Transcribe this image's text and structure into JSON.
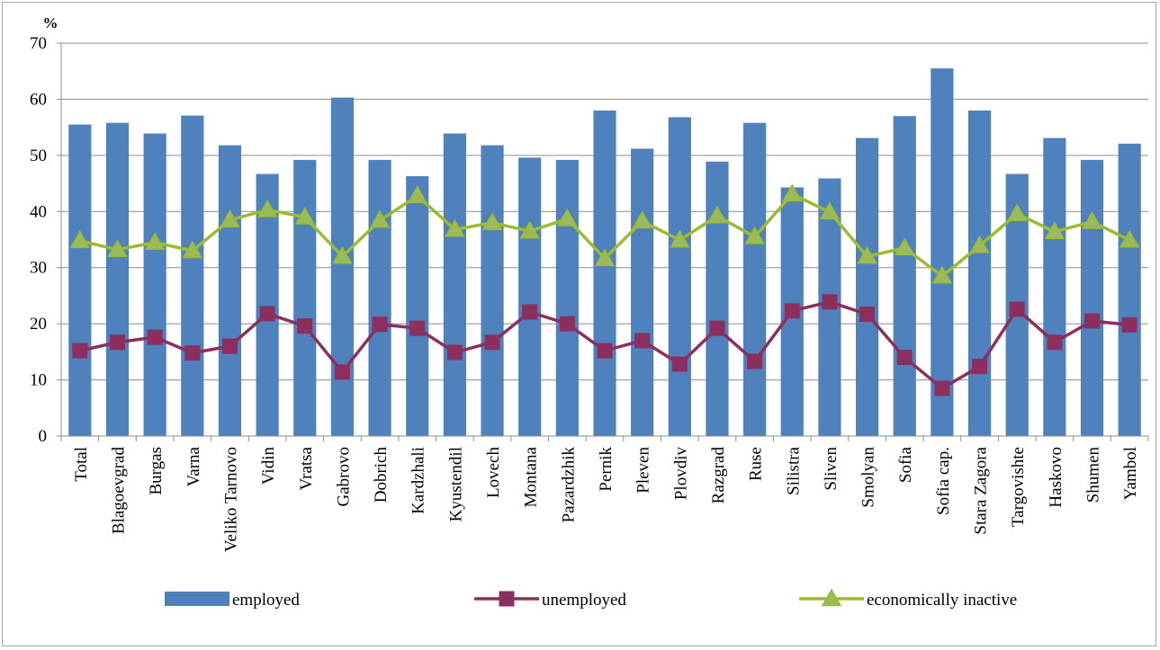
{
  "chart_data": {
    "type": "bar",
    "ylabel": "%",
    "ylim": [
      0,
      70
    ],
    "yticks": [
      0,
      10,
      20,
      30,
      40,
      50,
      60,
      70
    ],
    "grid": true,
    "legend_position": "bottom",
    "categories": [
      "Total",
      "Blagoevgrad",
      "Burgas",
      "Varna",
      "Veliko Tarnovo",
      "Vidin",
      "Vratsa",
      "Gabrovo",
      "Dobrich",
      "Kardzhali",
      "Kyustendil",
      "Lovech",
      "Montana",
      "Pazardzhik",
      "Pernik",
      "Pleven",
      "Plovdiv",
      "Razgrad",
      "Ruse",
      "Silistra",
      "Sliven",
      "Smolyan",
      "Sofia",
      "Sofia cap.",
      "Stara Zagora",
      "Targovishte",
      "Haskovo",
      "Shumen",
      "Yambol"
    ],
    "series": [
      {
        "name": "employed",
        "kind": "bar",
        "color": "#4f81bd",
        "values": [
          55.5,
          55.8,
          53.9,
          57.1,
          51.8,
          46.7,
          49.2,
          60.3,
          49.2,
          46.3,
          53.9,
          51.8,
          49.6,
          49.2,
          58.0,
          51.2,
          56.8,
          48.9,
          55.8,
          44.3,
          45.9,
          53.1,
          57.0,
          65.5,
          58.0,
          46.7,
          53.1,
          49.2,
          52.1
        ]
      },
      {
        "name": "unemployed",
        "kind": "line",
        "color": "#8b2f5f",
        "marker": "square",
        "values": [
          15.2,
          16.7,
          17.6,
          14.8,
          16.0,
          21.8,
          19.6,
          11.4,
          19.9,
          19.2,
          14.9,
          16.7,
          22.1,
          20.0,
          15.2,
          17.0,
          12.8,
          19.2,
          13.3,
          22.3,
          23.9,
          21.7,
          14.0,
          8.5,
          12.4,
          22.6,
          16.7,
          20.5,
          19.8
        ]
      },
      {
        "name": "economically inactive",
        "kind": "line",
        "color": "#9bbb30",
        "marker": "triangle",
        "values": [
          34.8,
          33.2,
          34.5,
          33.0,
          38.5,
          40.3,
          39.0,
          32.0,
          38.4,
          42.8,
          36.8,
          38.0,
          36.5,
          38.7,
          31.6,
          38.3,
          34.9,
          39.2,
          35.5,
          43.1,
          39.9,
          32.0,
          33.5,
          28.5,
          33.9,
          39.6,
          36.4,
          38.2,
          34.9
        ]
      }
    ]
  }
}
